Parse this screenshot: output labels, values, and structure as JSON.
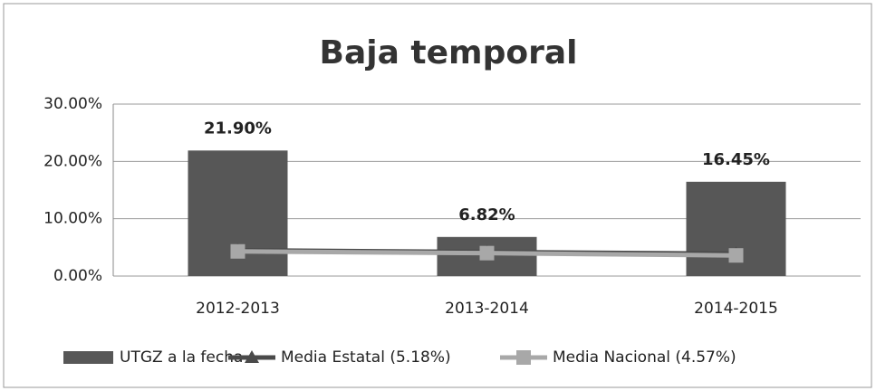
{
  "chart_data": {
    "type": "bar",
    "title": "Baja temporal",
    "categories": [
      "2012-2013",
      "2013-2014",
      "2014-2015"
    ],
    "series": [
      {
        "name": "UTGZ a la fecha",
        "type": "bar",
        "color": "#575757",
        "values": [
          21.9,
          6.82,
          16.45
        ],
        "value_labels": [
          "21.90%",
          "6.82%",
          "16.45%"
        ]
      },
      {
        "name": "Media Estatal (5.18%)",
        "type": "line",
        "marker": "triangle",
        "color": "#4a4a4a",
        "values": [
          4.5,
          4.2,
          3.9
        ]
      },
      {
        "name": "Media Nacional (4.57%)",
        "type": "line",
        "marker": "square",
        "color": "#a8a8a8",
        "values": [
          4.3,
          4.0,
          3.6
        ]
      }
    ],
    "ylim": [
      0,
      30
    ],
    "yticks": [
      {
        "value": 0,
        "label": "0.00%"
      },
      {
        "value": 10,
        "label": "10.00%"
      },
      {
        "value": 20,
        "label": "20.00%"
      },
      {
        "value": 30,
        "label": "30.00%"
      }
    ],
    "grid": true,
    "legend": "bottom"
  }
}
